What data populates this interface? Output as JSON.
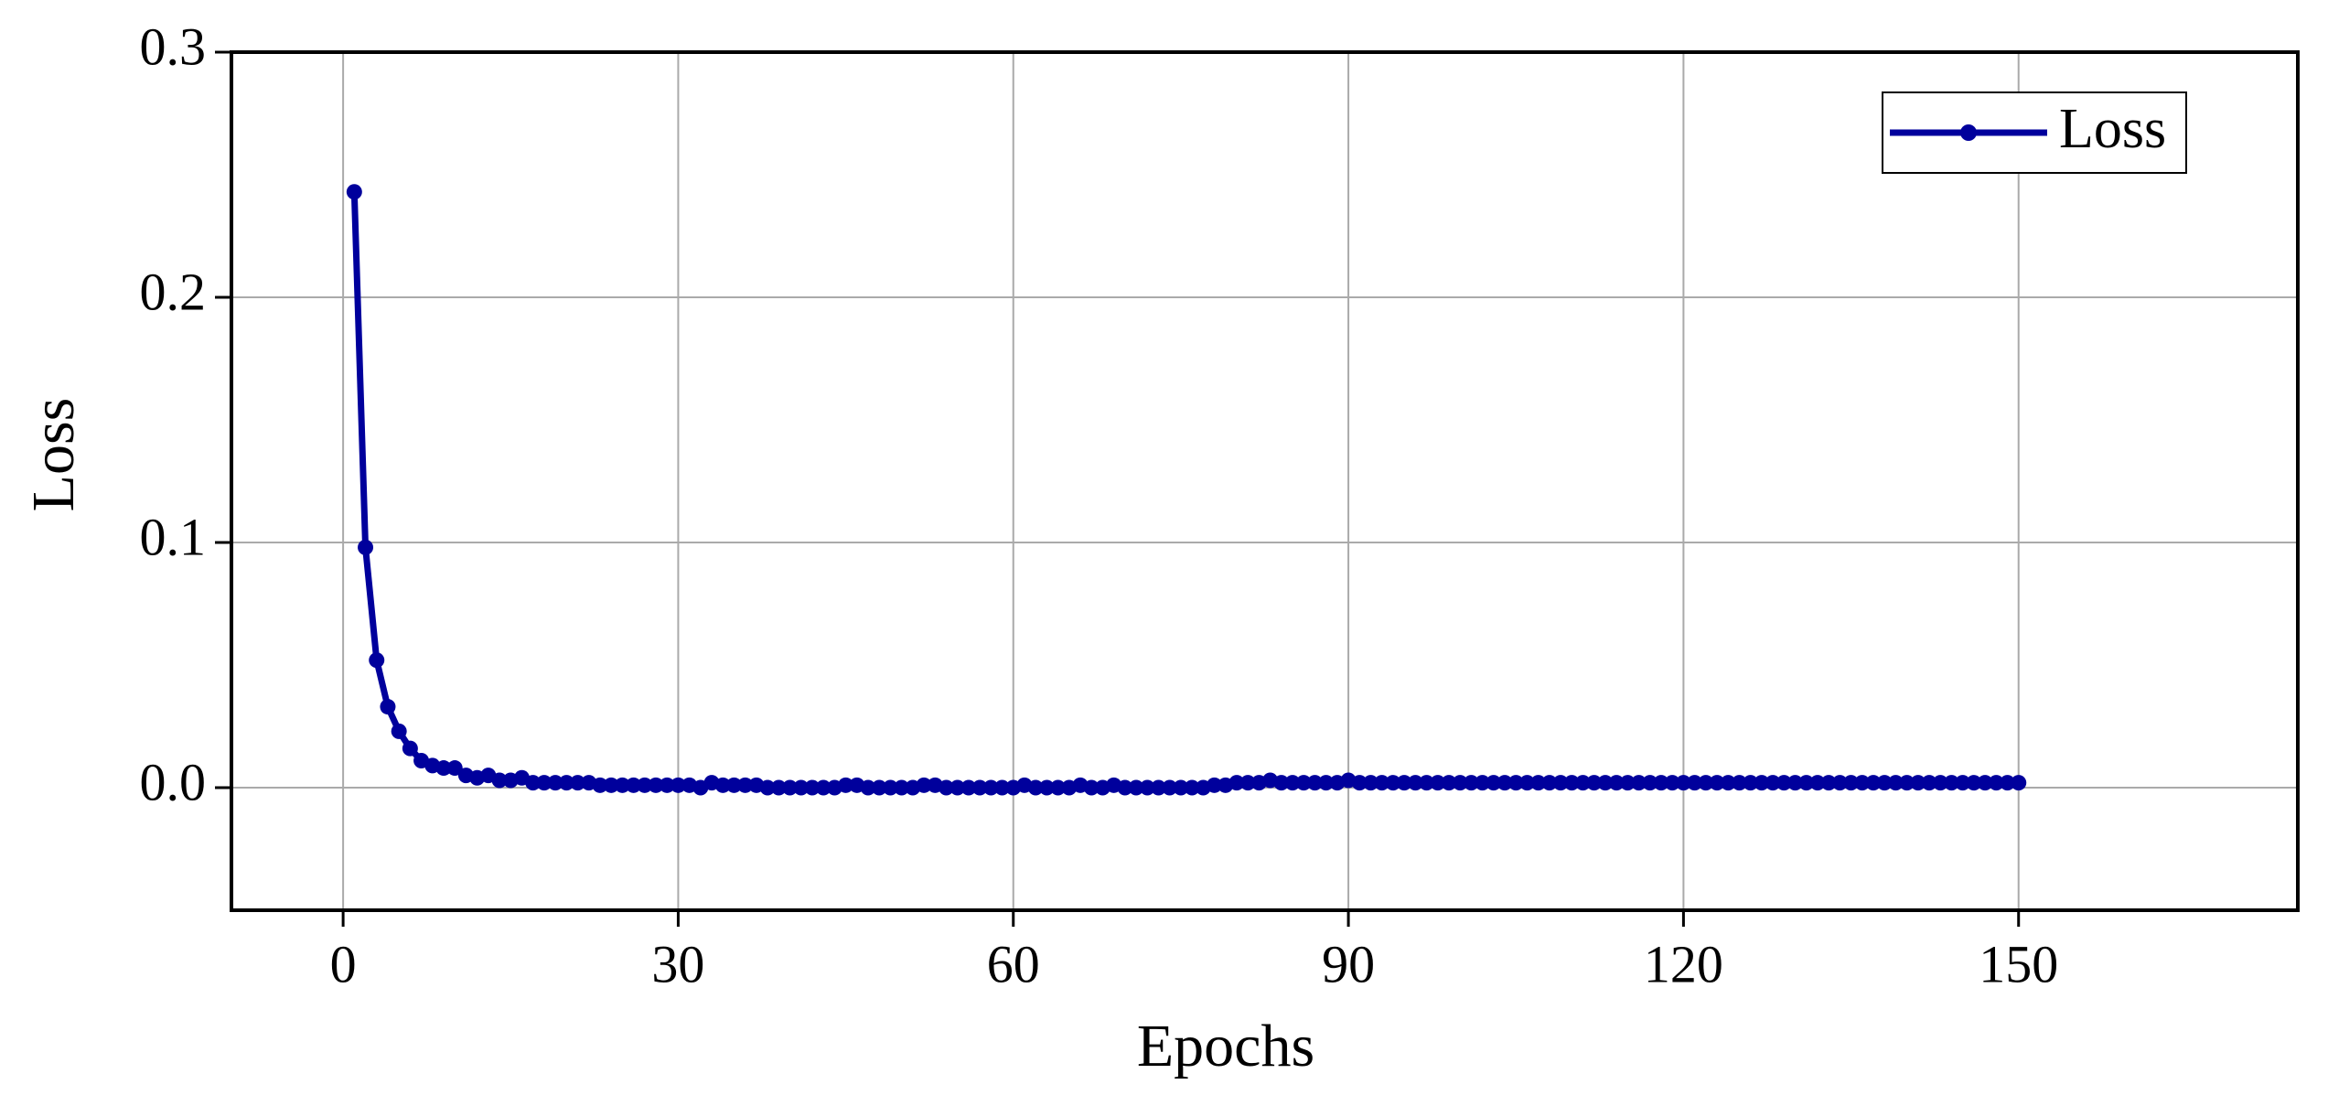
{
  "chart_data": {
    "type": "line",
    "xlabel": "Epochs",
    "ylabel": "Loss",
    "x": [
      1,
      2,
      3,
      4,
      5,
      6,
      7,
      8,
      9,
      10,
      11,
      12,
      13,
      14,
      15,
      16,
      17,
      18,
      19,
      20,
      21,
      22,
      23,
      24,
      25,
      26,
      27,
      28,
      29,
      30,
      31,
      32,
      33,
      34,
      35,
      36,
      37,
      38,
      39,
      40,
      41,
      42,
      43,
      44,
      45,
      46,
      47,
      48,
      49,
      50,
      51,
      52,
      53,
      54,
      55,
      56,
      57,
      58,
      59,
      60,
      61,
      62,
      63,
      64,
      65,
      66,
      67,
      68,
      69,
      70,
      71,
      72,
      73,
      74,
      75,
      76,
      77,
      78,
      79,
      80,
      81,
      82,
      83,
      84,
      85,
      86,
      87,
      88,
      89,
      90,
      91,
      92,
      93,
      94,
      95,
      96,
      97,
      98,
      99,
      100,
      101,
      102,
      103,
      104,
      105,
      106,
      107,
      108,
      109,
      110,
      111,
      112,
      113,
      114,
      115,
      116,
      117,
      118,
      119,
      120,
      121,
      122,
      123,
      124,
      125,
      126,
      127,
      128,
      129,
      130,
      131,
      132,
      133,
      134,
      135,
      136,
      137,
      138,
      139,
      140,
      141,
      142,
      143,
      144,
      145,
      146,
      147,
      148,
      149,
      150
    ],
    "series": [
      {
        "name": "Loss",
        "color": "#00009c",
        "values": [
          0.243,
          0.098,
          0.052,
          0.033,
          0.023,
          0.016,
          0.011,
          0.009,
          0.008,
          0.008,
          0.005,
          0.004,
          0.005,
          0.003,
          0.003,
          0.004,
          0.002,
          0.002,
          0.002,
          0.002,
          0.002,
          0.002,
          0.001,
          0.001,
          0.001,
          0.001,
          0.001,
          0.001,
          0.001,
          0.001,
          0.001,
          0,
          0.002,
          0.001,
          0.001,
          0.001,
          0.001,
          0,
          0,
          0,
          0,
          0,
          0,
          0,
          0.001,
          0.001,
          0,
          0,
          0,
          0,
          0,
          0.001,
          0.001,
          0,
          0,
          0,
          0,
          0,
          0,
          0,
          0.001,
          0,
          0,
          0,
          0,
          0.001,
          0,
          0,
          0.001,
          0,
          0,
          0,
          0,
          0,
          0,
          0,
          0,
          0.001,
          0.001,
          0.002,
          0.002,
          0.002,
          0.003,
          0.002,
          0.002,
          0.002,
          0.002,
          0.002,
          0.002,
          0.003,
          0.002,
          0.002,
          0.002,
          0.002,
          0.002,
          0.002,
          0.002,
          0.002,
          0.002,
          0.002,
          0.002,
          0.002,
          0.002,
          0.002,
          0.002,
          0.002,
          0.002,
          0.002,
          0.002,
          0.002,
          0.002,
          0.002,
          0.002,
          0.002,
          0.002,
          0.002,
          0.002,
          0.002,
          0.002,
          0.002,
          0.002,
          0.002,
          0.002,
          0.002,
          0.002,
          0.002,
          0.002,
          0.002,
          0.002,
          0.002,
          0.002,
          0.002,
          0.002,
          0.002,
          0.002,
          0.002,
          0.002,
          0.002,
          0.002,
          0.002,
          0.002,
          0.002,
          0.002,
          0.002,
          0.002,
          0.002,
          0.002,
          0.002,
          0.002,
          0.002
        ]
      }
    ],
    "xlim": [
      -10,
      175
    ],
    "ylim": [
      -0.05,
      0.3
    ],
    "xticks": [
      0,
      30,
      60,
      90,
      120,
      150
    ],
    "yticks": [
      {
        "value": 0,
        "label": "0.0"
      },
      0.1,
      0.2,
      0.3
    ],
    "grid": true,
    "legend": "upper right"
  }
}
